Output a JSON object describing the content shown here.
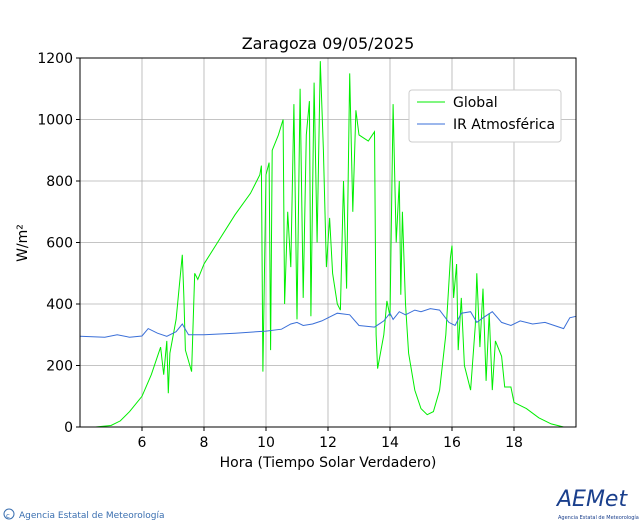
{
  "chart_data": {
    "type": "line",
    "title": "Zaragoza 09/05/2025",
    "xlabel": "Hora (Tiempo Solar Verdadero)",
    "ylabel": "W/m²",
    "xlim": [
      4,
      20
    ],
    "xticks": [
      6,
      8,
      10,
      12,
      14,
      16,
      18
    ],
    "ylim": [
      0,
      1200
    ],
    "yticks": [
      0,
      200,
      400,
      600,
      800,
      1000,
      1200
    ],
    "grid": true,
    "legend": "upper right",
    "series": [
      {
        "name": "Global",
        "color": "#00ee00",
        "x": [
          4.0,
          4.5,
          5.0,
          5.3,
          5.6,
          6.0,
          6.3,
          6.5,
          6.6,
          6.7,
          6.8,
          6.85,
          6.9,
          7.1,
          7.3,
          7.35,
          7.4,
          7.6,
          7.7,
          7.8,
          8.0,
          8.5,
          9.0,
          9.5,
          9.8,
          9.85,
          9.9,
          10.0,
          10.1,
          10.15,
          10.2,
          10.4,
          10.55,
          10.6,
          10.7,
          10.8,
          10.9,
          11.0,
          11.1,
          11.2,
          11.3,
          11.4,
          11.45,
          11.55,
          11.65,
          11.75,
          11.85,
          11.95,
          12.05,
          12.15,
          12.3,
          12.4,
          12.5,
          12.6,
          12.7,
          12.8,
          12.9,
          13.0,
          13.3,
          13.5,
          13.55,
          13.6,
          13.8,
          13.9,
          14.0,
          14.1,
          14.2,
          14.3,
          14.35,
          14.4,
          14.5,
          14.6,
          14.8,
          15.0,
          15.2,
          15.4,
          15.6,
          15.8,
          15.95,
          16.0,
          16.05,
          16.15,
          16.2,
          16.3,
          16.4,
          16.6,
          16.75,
          16.8,
          16.9,
          17.0,
          17.1,
          17.2,
          17.3,
          17.4,
          17.6,
          17.7,
          17.9,
          18.0,
          18.4,
          18.8,
          19.2,
          19.6,
          20.0
        ],
        "values": [
          0,
          0,
          5,
          20,
          50,
          100,
          170,
          230,
          260,
          170,
          280,
          110,
          240,
          350,
          560,
          430,
          250,
          180,
          500,
          480,
          530,
          610,
          690,
          760,
          820,
          850,
          180,
          820,
          860,
          250,
          900,
          950,
          1000,
          400,
          700,
          520,
          1050,
          350,
          1100,
          420,
          950,
          1060,
          360,
          1120,
          600,
          1190,
          900,
          520,
          680,
          500,
          400,
          380,
          800,
          450,
          1150,
          700,
          1030,
          950,
          930,
          960,
          300,
          190,
          300,
          410,
          360,
          1050,
          600,
          800,
          430,
          700,
          400,
          240,
          120,
          60,
          40,
          50,
          120,
          300,
          550,
          590,
          420,
          530,
          250,
          420,
          200,
          120,
          330,
          500,
          260,
          450,
          150,
          370,
          120,
          280,
          230,
          130,
          130,
          80,
          60,
          30,
          10,
          0,
          0
        ]
      },
      {
        "name": "IR Atmosférica",
        "color": "#3a6fd8",
        "x": [
          4.0,
          4.8,
          5.2,
          5.6,
          6.0,
          6.2,
          6.5,
          6.8,
          7.1,
          7.3,
          7.5,
          8.0,
          9.0,
          10.0,
          10.5,
          10.8,
          11.0,
          11.2,
          11.5,
          11.8,
          12.0,
          12.3,
          12.7,
          13.0,
          13.5,
          13.8,
          14.0,
          14.1,
          14.3,
          14.5,
          14.8,
          15.0,
          15.3,
          15.6,
          15.9,
          16.1,
          16.3,
          16.6,
          16.8,
          17.0,
          17.3,
          17.6,
          17.9,
          18.2,
          18.6,
          19.0,
          19.3,
          19.6,
          19.8,
          20.0
        ],
        "values": [
          295,
          292,
          300,
          292,
          296,
          320,
          305,
          295,
          310,
          335,
          300,
          300,
          305,
          312,
          318,
          335,
          340,
          330,
          335,
          345,
          355,
          370,
          365,
          330,
          325,
          345,
          370,
          350,
          375,
          365,
          380,
          375,
          385,
          380,
          340,
          330,
          370,
          375,
          340,
          355,
          375,
          340,
          330,
          345,
          335,
          340,
          330,
          320,
          355,
          360
        ]
      }
    ]
  },
  "footer": {
    "credit": "Agencia Estatal de Meteorología",
    "logo": "AEMet",
    "logo_caption": "Agencia Estatal de Meteorología"
  }
}
